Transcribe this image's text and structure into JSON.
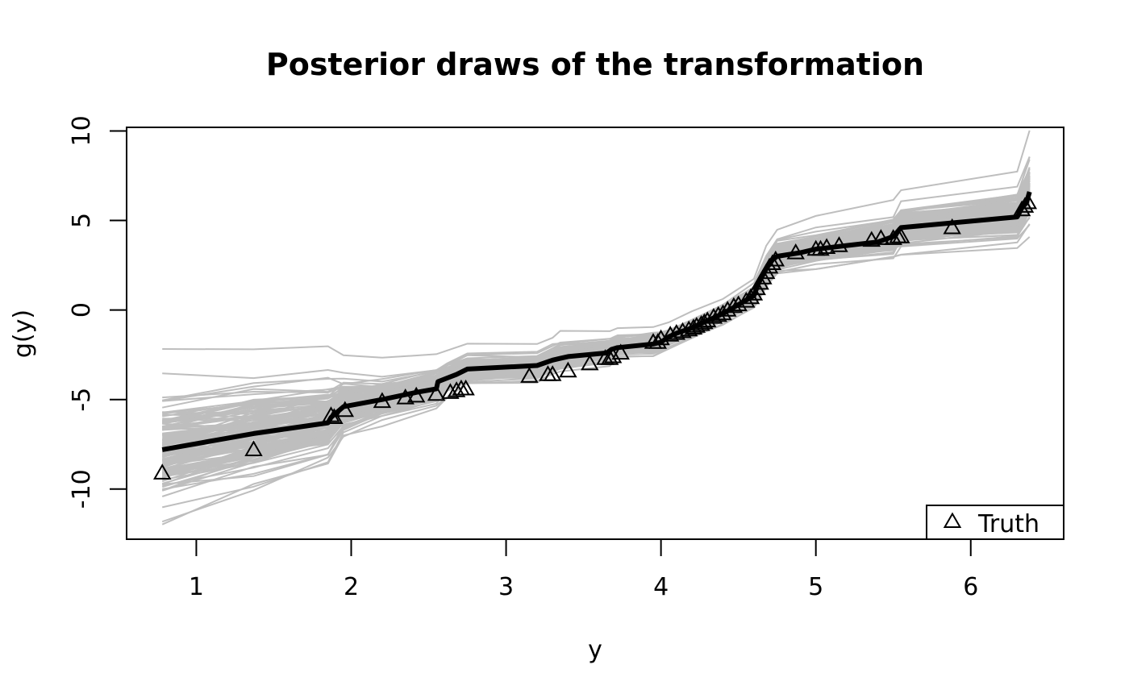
{
  "chart_data": {
    "type": "line",
    "title": "Posterior draws of the transformation",
    "xlabel": "y",
    "ylabel": "g(y)",
    "xlim": [
      0.55,
      6.6
    ],
    "ylim": [
      -12.8,
      10.2
    ],
    "xticks": [
      1,
      2,
      3,
      4,
      5,
      6
    ],
    "xtick_labels": [
      "1",
      "2",
      "3",
      "4",
      "5",
      "6"
    ],
    "yticks": [
      -10,
      -5,
      0,
      5,
      10
    ],
    "ytick_labels": [
      "-10",
      "-5",
      "0",
      "5",
      "10"
    ],
    "grid": false,
    "legend": {
      "position": "bottom-right",
      "entries": [
        {
          "label": "Truth",
          "marker": "open-triangle"
        }
      ]
    },
    "colors": {
      "draws": "#bebebe",
      "mean": "#000000",
      "truth": "#000000"
    },
    "series": [
      {
        "style": "posterior-draws",
        "x": [
          0.78,
          1.37,
          1.85,
          1.95,
          2.2,
          2.55,
          2.62,
          2.75,
          3.2,
          3.3,
          3.35,
          3.67,
          3.72,
          3.95,
          4.05,
          4.2,
          4.4,
          4.6,
          4.68,
          4.75,
          5.0,
          5.5,
          5.55,
          6.3,
          6.38
        ],
        "center": [
          -7.8,
          -6.9,
          -6.2,
          -5.4,
          -5.0,
          -4.3,
          -3.8,
          -3.3,
          -3.2,
          -2.8,
          -2.6,
          -2.3,
          -2.0,
          -1.9,
          -1.6,
          -1.0,
          -0.2,
          0.8,
          2.2,
          3.0,
          3.4,
          4.1,
          4.6,
          5.2,
          6.5
        ],
        "spread": [
          3.6,
          3.0,
          2.4,
          1.7,
          1.3,
          1.0,
          0.9,
          0.8,
          0.8,
          0.8,
          0.8,
          0.7,
          0.6,
          0.6,
          0.5,
          0.5,
          0.5,
          0.6,
          0.9,
          0.9,
          1.0,
          1.2,
          1.3,
          1.5,
          2.0
        ],
        "draw_count": 140
      },
      {
        "style": "posterior-mean",
        "x": [
          0.78,
          1.37,
          1.85,
          1.87,
          1.95,
          2.2,
          2.42,
          2.55,
          2.56,
          2.62,
          2.68,
          2.75,
          3.2,
          3.3,
          3.35,
          3.4,
          3.65,
          3.68,
          3.72,
          3.95,
          4.0,
          4.05,
          4.1,
          4.2,
          4.3,
          4.4,
          4.5,
          4.6,
          4.63,
          4.68,
          4.72,
          4.75,
          4.9,
          5.0,
          5.2,
          5.4,
          5.5,
          5.55,
          6.3,
          6.33,
          6.36,
          6.38
        ],
        "y": [
          -7.8,
          -6.9,
          -6.3,
          -6.0,
          -5.4,
          -5.0,
          -4.6,
          -4.4,
          -4.0,
          -3.8,
          -3.6,
          -3.3,
          -3.1,
          -2.8,
          -2.7,
          -2.6,
          -2.4,
          -2.2,
          -2.1,
          -1.9,
          -1.8,
          -1.5,
          -1.3,
          -1.0,
          -0.6,
          -0.2,
          0.3,
          0.8,
          1.5,
          2.3,
          2.8,
          3.0,
          3.2,
          3.4,
          3.6,
          3.8,
          4.1,
          4.6,
          5.2,
          5.7,
          6.0,
          6.6
        ]
      },
      {
        "name": "Truth",
        "style": "points",
        "x": [
          0.78,
          1.37,
          1.87,
          1.89,
          1.96,
          2.2,
          2.35,
          2.42,
          2.55,
          2.64,
          2.68,
          2.71,
          2.74,
          3.15,
          3.27,
          3.3,
          3.4,
          3.54,
          3.64,
          3.67,
          3.69,
          3.74,
          3.95,
          3.98,
          4.0,
          4.06,
          4.1,
          4.14,
          4.18,
          4.21,
          4.23,
          4.26,
          4.28,
          4.3,
          4.34,
          4.37,
          4.4,
          4.43,
          4.47,
          4.5,
          4.55,
          4.58,
          4.6,
          4.62,
          4.64,
          4.66,
          4.68,
          4.7,
          4.72,
          4.74,
          4.87,
          5.0,
          5.03,
          5.07,
          5.15,
          5.36,
          5.42,
          5.5,
          5.53,
          5.55,
          5.88,
          6.33,
          6.35,
          6.37
        ],
        "y": [
          -9.1,
          -7.8,
          -5.9,
          -6.0,
          -5.6,
          -5.1,
          -4.9,
          -4.8,
          -4.7,
          -4.6,
          -4.5,
          -4.4,
          -4.4,
          -3.7,
          -3.6,
          -3.6,
          -3.4,
          -3.0,
          -2.7,
          -2.7,
          -2.6,
          -2.4,
          -1.8,
          -1.8,
          -1.6,
          -1.4,
          -1.3,
          -1.2,
          -1.1,
          -1.0,
          -0.9,
          -0.8,
          -0.7,
          -0.6,
          -0.4,
          -0.3,
          -0.2,
          0.0,
          0.2,
          0.3,
          0.5,
          0.7,
          0.9,
          1.2,
          1.5,
          1.8,
          2.1,
          2.4,
          2.6,
          2.8,
          3.2,
          3.4,
          3.4,
          3.5,
          3.6,
          3.9,
          4.0,
          4.0,
          4.1,
          4.1,
          4.6,
          5.6,
          5.8,
          6.0
        ]
      }
    ]
  }
}
